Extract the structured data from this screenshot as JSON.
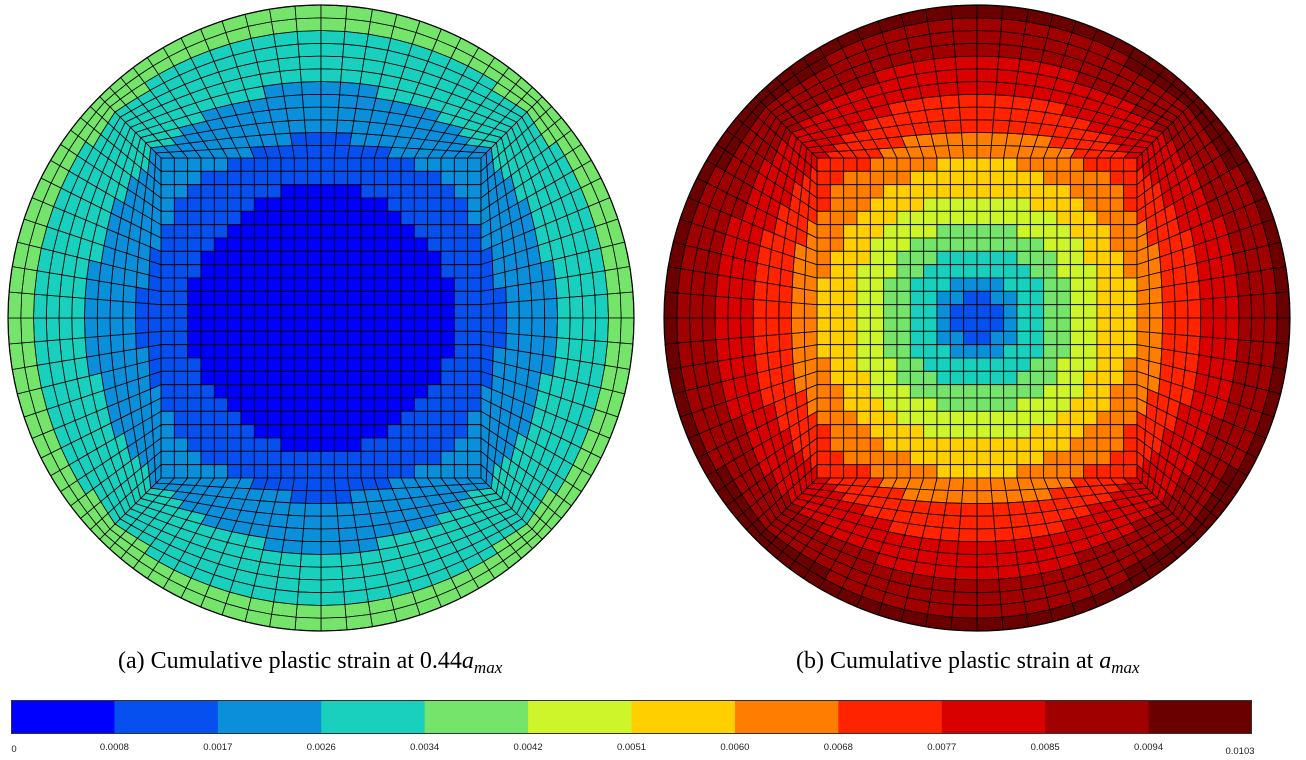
{
  "captions": {
    "a": {
      "prefix": "(a) Cumulative plastic strain at 0.44",
      "var": "a",
      "sub": "max"
    },
    "b": {
      "prefix": "(b) Cumulative plastic strain at ",
      "var": "a",
      "sub": "max"
    }
  },
  "chart_data": [
    {
      "type": "heatmap",
      "panel": "a",
      "title": "(a) Cumulative plastic strain at 0.44a_max",
      "field_levels": {
        "description_of_bands_from_center_outward": [
          0.0004,
          0.0012,
          0.0021,
          0.003,
          0.0038
        ],
        "center_value": 0.0004,
        "edge_value": 0.0038
      },
      "mesh": "circular domain, square core with radial outer rings"
    },
    {
      "type": "heatmap",
      "panel": "b",
      "title": "(b) Cumulative plastic strain at a_max",
      "field_levels": {
        "center_value": 0.0004,
        "edge_value": 0.0098
      },
      "mesh": "circular domain, square core with radial outer rings"
    }
  ],
  "colorbar": {
    "ticks": [
      "0",
      "0.0008",
      "0.0017",
      "0.0026",
      "0.0034",
      "0.0042",
      "0.0051",
      "0.0060",
      "0.0068",
      "0.0077",
      "0.0085",
      "0.0094",
      "0.0103"
    ],
    "colors": [
      "#0000ff",
      "#0550ee",
      "#0b8fdb",
      "#19d0be",
      "#74e56a",
      "#cef42a",
      "#ffcf00",
      "#ff7d00",
      "#ff2300",
      "#d90000",
      "#a00000",
      "#6b0000"
    ],
    "min": 0,
    "max": 0.0103
  }
}
